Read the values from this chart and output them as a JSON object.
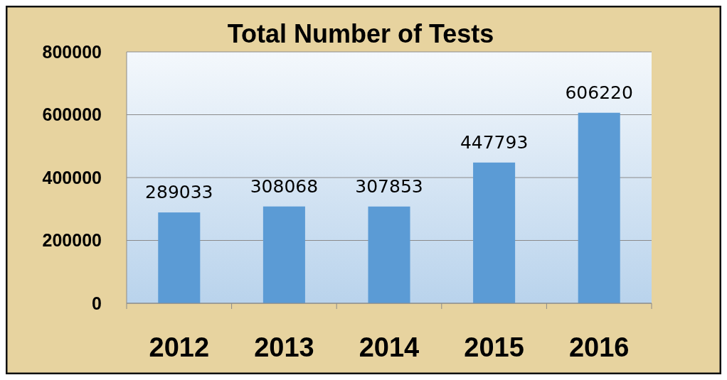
{
  "chart_data": {
    "type": "bar",
    "title": "Total Number of Tests",
    "categories": [
      "2012",
      "2013",
      "2014",
      "2015",
      "2016"
    ],
    "values": [
      289033,
      308068,
      307853,
      447793,
      606220
    ],
    "color": "#5b9bd5",
    "ylim": [
      0,
      800000
    ],
    "yticks": [
      0,
      200000,
      400000,
      600000,
      800000
    ],
    "grid": "y",
    "data_labels": true
  }
}
